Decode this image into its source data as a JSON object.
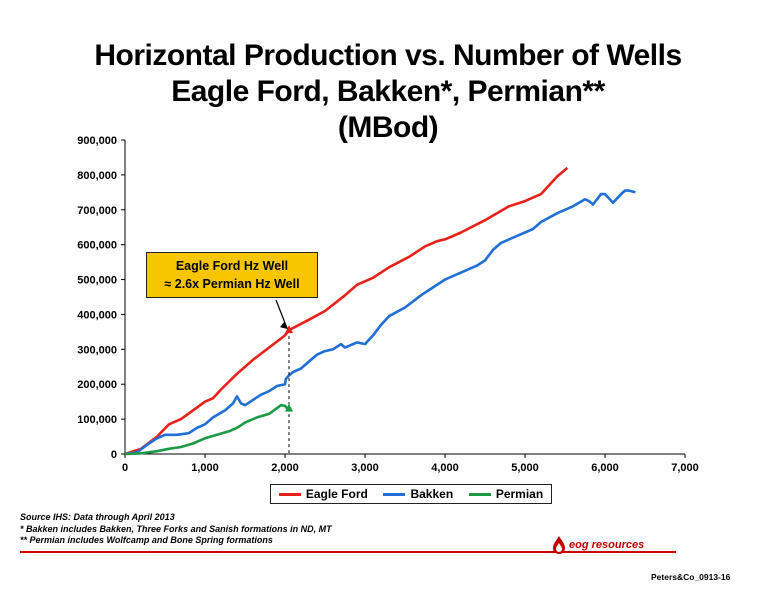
{
  "title": {
    "line1": "Horizontal Production vs. Number of Wells",
    "line2": "Eagle Ford, Bakken*, Permian**",
    "line3": "(MBod)"
  },
  "chart_data": {
    "type": "line",
    "title": "Horizontal Production vs. Number of Wells Eagle Ford, Bakken*, Permian** (MBod)",
    "xlabel": "",
    "ylabel": "",
    "xlim": [
      0,
      7000
    ],
    "ylim": [
      0,
      900000
    ],
    "x_ticks": [
      "0",
      "1,000",
      "2,000",
      "3,000",
      "4,000",
      "5,000",
      "6,000",
      "7,000"
    ],
    "y_ticks": [
      "0",
      "100,000",
      "200,000",
      "300,000",
      "400,000",
      "500,000",
      "600,000",
      "700,000",
      "800,000",
      "900,000"
    ],
    "grid": false,
    "legend_position": "bottom",
    "series": [
      {
        "name": "Eagle Ford",
        "color": "#e8201a",
        "points": [
          [
            0,
            0
          ],
          [
            200,
            15000
          ],
          [
            400,
            50000
          ],
          [
            550,
            85000
          ],
          [
            700,
            100000
          ],
          [
            850,
            125000
          ],
          [
            1000,
            150000
          ],
          [
            1100,
            160000
          ],
          [
            1200,
            185000
          ],
          [
            1400,
            230000
          ],
          [
            1600,
            270000
          ],
          [
            1800,
            305000
          ],
          [
            2000,
            340000
          ],
          [
            2050,
            355000
          ],
          [
            2300,
            385000
          ],
          [
            2500,
            410000
          ],
          [
            2750,
            455000
          ],
          [
            2900,
            485000
          ],
          [
            3100,
            505000
          ],
          [
            3300,
            535000
          ],
          [
            3550,
            565000
          ],
          [
            3750,
            595000
          ],
          [
            3900,
            610000
          ],
          [
            4000,
            615000
          ],
          [
            4200,
            635000
          ],
          [
            4500,
            670000
          ],
          [
            4800,
            710000
          ],
          [
            5000,
            725000
          ],
          [
            5200,
            745000
          ],
          [
            5400,
            795000
          ],
          [
            5530,
            820000
          ]
        ]
      },
      {
        "name": "Bakken",
        "color": "#1f6fd6",
        "points": [
          [
            0,
            0
          ],
          [
            150,
            5000
          ],
          [
            300,
            30000
          ],
          [
            400,
            45000
          ],
          [
            500,
            55000
          ],
          [
            650,
            55000
          ],
          [
            800,
            60000
          ],
          [
            900,
            75000
          ],
          [
            1000,
            85000
          ],
          [
            1100,
            105000
          ],
          [
            1250,
            125000
          ],
          [
            1350,
            145000
          ],
          [
            1400,
            165000
          ],
          [
            1450,
            145000
          ],
          [
            1500,
            140000
          ],
          [
            1600,
            155000
          ],
          [
            1700,
            170000
          ],
          [
            1800,
            180000
          ],
          [
            1900,
            195000
          ],
          [
            2000,
            200000
          ],
          [
            2010,
            215000
          ],
          [
            2050,
            225000
          ],
          [
            2100,
            235000
          ],
          [
            2200,
            245000
          ],
          [
            2300,
            265000
          ],
          [
            2400,
            285000
          ],
          [
            2500,
            295000
          ],
          [
            2600,
            300000
          ],
          [
            2700,
            315000
          ],
          [
            2750,
            305000
          ],
          [
            2800,
            310000
          ],
          [
            2900,
            320000
          ],
          [
            3000,
            315000
          ],
          [
            3100,
            340000
          ],
          [
            3200,
            370000
          ],
          [
            3300,
            395000
          ],
          [
            3500,
            420000
          ],
          [
            3700,
            455000
          ],
          [
            3800,
            470000
          ],
          [
            4000,
            500000
          ],
          [
            4200,
            520000
          ],
          [
            4300,
            530000
          ],
          [
            4400,
            540000
          ],
          [
            4500,
            555000
          ],
          [
            4600,
            585000
          ],
          [
            4700,
            605000
          ],
          [
            4900,
            625000
          ],
          [
            5100,
            645000
          ],
          [
            5200,
            665000
          ],
          [
            5400,
            690000
          ],
          [
            5600,
            710000
          ],
          [
            5750,
            730000
          ],
          [
            5800,
            725000
          ],
          [
            5850,
            715000
          ],
          [
            5950,
            745000
          ],
          [
            6000,
            745000
          ],
          [
            6100,
            720000
          ],
          [
            6200,
            745000
          ],
          [
            6250,
            755000
          ],
          [
            6300,
            755000
          ],
          [
            6380,
            750000
          ]
        ]
      },
      {
        "name": "Permian",
        "color": "#1d9a45",
        "points": [
          [
            0,
            0
          ],
          [
            200,
            2000
          ],
          [
            400,
            8000
          ],
          [
            550,
            15000
          ],
          [
            700,
            20000
          ],
          [
            850,
            30000
          ],
          [
            1000,
            45000
          ],
          [
            1150,
            55000
          ],
          [
            1300,
            65000
          ],
          [
            1400,
            75000
          ],
          [
            1500,
            90000
          ],
          [
            1650,
            105000
          ],
          [
            1800,
            115000
          ],
          [
            1950,
            140000
          ],
          [
            2000,
            138000
          ],
          [
            2030,
            130000
          ],
          [
            2060,
            132000
          ]
        ]
      }
    ],
    "annotations": [
      {
        "text": "Eagle Ford Hz Well ≈ 2.6x Permian Hz Well",
        "x": 2050,
        "y_eagle_ford": 355000,
        "y_permian": 130000
      }
    ]
  },
  "legend": {
    "eagle_ford": "Eagle Ford",
    "bakken": "Bakken",
    "permian": "Permian"
  },
  "callout": {
    "line1": "Eagle Ford Hz Well",
    "line2": "≈ 2.6x Permian Hz Well"
  },
  "notes": {
    "source": "Source IHS: Data through April 2013",
    "note1": "*   Bakken includes Bakken, Three Forks and Sanish formations in ND, MT",
    "note2": "** Permian includes Wolfcamp and Bone Spring formations"
  },
  "logo": {
    "text": "eog resources",
    "icon": "flame-drop-icon",
    "color": "#c00000"
  },
  "slide_id": "Peters&Co_0913-16"
}
